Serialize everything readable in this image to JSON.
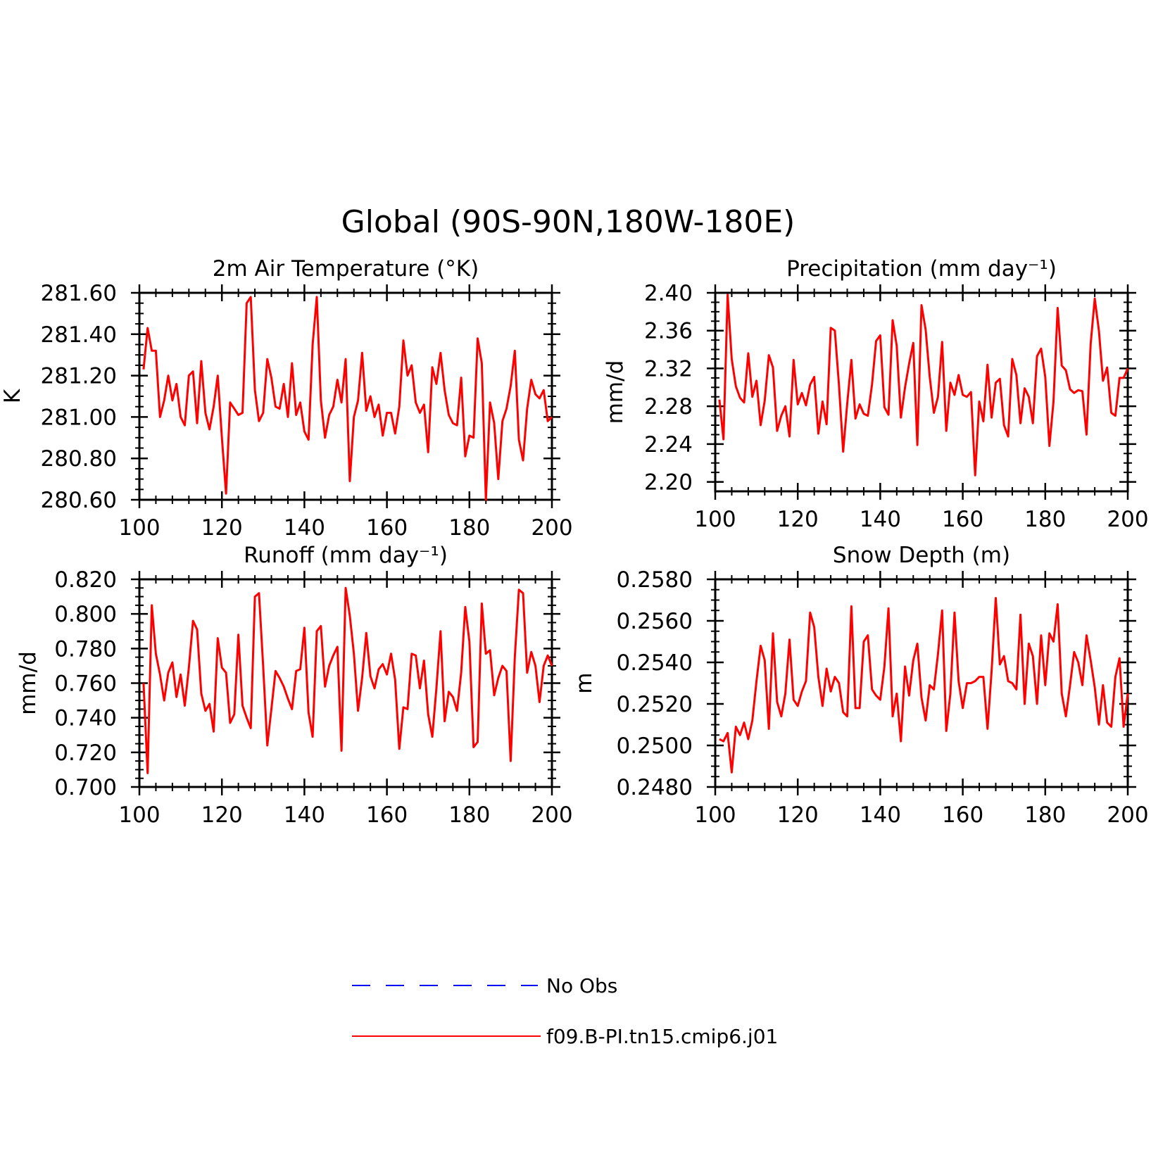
{
  "figure": {
    "title": "Global (90S-90N,180W-180E)"
  },
  "legend": {
    "placement": "bottom-center",
    "entries": [
      {
        "label": "No Obs",
        "color": "#0000ff",
        "style": "dashed"
      },
      {
        "label": "f09.B-PI.tn15.cmip6.j01",
        "color": "#ff0000",
        "style": "solid"
      }
    ]
  },
  "chart_data": [
    {
      "type": "line",
      "title": "2m Air Temperature (°K)",
      "ylabel": "K",
      "xlabel": "",
      "xlim": [
        100,
        200
      ],
      "ylim": [
        280.6,
        281.6
      ],
      "x_ticks": [
        "100",
        "120",
        "140",
        "160",
        "180",
        "200"
      ],
      "y_ticks": [
        "280.60",
        "280.80",
        "281.00",
        "281.20",
        "281.40",
        "281.60"
      ],
      "grid": false,
      "series": [
        {
          "name": "f09.B-PI.tn15.cmip6.j01",
          "color": "#ff0000",
          "x": [
            101,
            102,
            103,
            104,
            105,
            106,
            107,
            108,
            109,
            110,
            111,
            112,
            113,
            114,
            115,
            116,
            117,
            118,
            119,
            120,
            121,
            122,
            123,
            124,
            125,
            126,
            127,
            128,
            129,
            130,
            131,
            132,
            133,
            134,
            135,
            136,
            137,
            138,
            139,
            140,
            141,
            142,
            143,
            144,
            145,
            146,
            147,
            148,
            149,
            150,
            151,
            152,
            153,
            154,
            155,
            156,
            157,
            158,
            159,
            160,
            161,
            162,
            163,
            164,
            165,
            166,
            167,
            168,
            169,
            170,
            171,
            172,
            173,
            174,
            175,
            176,
            177,
            178,
            179,
            180,
            181,
            182,
            183,
            184,
            185,
            186,
            187,
            188,
            189,
            190,
            191,
            192,
            193,
            194,
            195,
            196,
            197,
            198,
            199,
            200
          ],
          "y": [
            281.23,
            281.43,
            281.32,
            281.32,
            281.0,
            281.08,
            281.2,
            281.08,
            281.16,
            281.0,
            280.96,
            281.2,
            281.22,
            280.97,
            281.27,
            281.02,
            280.94,
            281.05,
            281.2,
            280.9,
            280.63,
            281.07,
            281.04,
            281.01,
            281.02,
            281.55,
            281.58,
            281.13,
            280.98,
            281.02,
            281.28,
            281.19,
            281.05,
            281.04,
            281.16,
            281.0,
            281.26,
            281.01,
            281.07,
            280.93,
            280.89,
            281.35,
            281.58,
            281.08,
            280.9,
            281.01,
            281.05,
            281.18,
            281.07,
            281.28,
            280.69,
            281.0,
            281.08,
            281.31,
            281.03,
            281.1,
            281.0,
            281.06,
            280.91,
            281.02,
            281.02,
            280.92,
            281.05,
            281.37,
            281.2,
            281.25,
            281.07,
            281.02,
            281.06,
            280.83,
            281.24,
            281.16,
            281.31,
            281.13,
            281.01,
            280.97,
            280.96,
            281.19,
            280.81,
            280.91,
            280.9,
            281.38,
            281.26,
            280.6,
            281.07,
            280.97,
            280.7,
            280.98,
            281.04,
            281.15,
            281.32,
            280.89,
            280.79,
            281.04,
            281.18,
            281.11,
            281.09,
            281.13,
            280.98,
            281.0
          ]
        }
      ]
    },
    {
      "type": "line",
      "title": "Precipitation (mm day⁻¹)",
      "ylabel": "mm/d",
      "xlabel": "",
      "xlim": [
        100,
        200
      ],
      "ylim": [
        2.19,
        2.4
      ],
      "x_ticks": [
        "100",
        "120",
        "140",
        "160",
        "180",
        "200"
      ],
      "y_ticks": [
        "2.20",
        "2.24",
        "2.28",
        "2.32",
        "2.36",
        "2.40"
      ],
      "grid": false,
      "series": [
        {
          "name": "f09.B-PI.tn15.cmip6.j01",
          "color": "#ff0000",
          "x": [
            101,
            102,
            103,
            104,
            105,
            106,
            107,
            108,
            109,
            110,
            111,
            112,
            113,
            114,
            115,
            116,
            117,
            118,
            119,
            120,
            121,
            122,
            123,
            124,
            125,
            126,
            127,
            128,
            129,
            130,
            131,
            132,
            133,
            134,
            135,
            136,
            137,
            138,
            139,
            140,
            141,
            142,
            143,
            144,
            145,
            146,
            147,
            148,
            149,
            150,
            151,
            152,
            153,
            154,
            155,
            156,
            157,
            158,
            159,
            160,
            161,
            162,
            163,
            164,
            165,
            166,
            167,
            168,
            169,
            170,
            171,
            172,
            173,
            174,
            175,
            176,
            177,
            178,
            179,
            180,
            181,
            182,
            183,
            184,
            185,
            186,
            187,
            188,
            189,
            190,
            191,
            192,
            193,
            194,
            195,
            196,
            197,
            198,
            199,
            200
          ],
          "y": [
            2.287,
            2.245,
            2.398,
            2.33,
            2.301,
            2.289,
            2.284,
            2.336,
            2.29,
            2.307,
            2.26,
            2.286,
            2.334,
            2.321,
            2.254,
            2.27,
            2.28,
            2.248,
            2.329,
            2.282,
            2.294,
            2.281,
            2.303,
            2.311,
            2.251,
            2.285,
            2.261,
            2.363,
            2.36,
            2.302,
            2.232,
            2.283,
            2.329,
            2.267,
            2.282,
            2.272,
            2.27,
            2.303,
            2.349,
            2.355,
            2.279,
            2.271,
            2.371,
            2.344,
            2.268,
            2.3,
            2.325,
            2.347,
            2.239,
            2.387,
            2.361,
            2.311,
            2.273,
            2.29,
            2.348,
            2.254,
            2.305,
            2.292,
            2.313,
            2.292,
            2.29,
            2.295,
            2.207,
            2.285,
            2.264,
            2.324,
            2.268,
            2.305,
            2.309,
            2.26,
            2.248,
            2.33,
            2.313,
            2.262,
            2.299,
            2.29,
            2.262,
            2.333,
            2.341,
            2.311,
            2.238,
            2.285,
            2.384,
            2.323,
            2.318,
            2.298,
            2.294,
            2.297,
            2.296,
            2.25,
            2.346,
            2.394,
            2.36,
            2.307,
            2.321,
            2.273,
            2.27,
            2.31,
            2.31,
            2.32
          ]
        }
      ]
    },
    {
      "type": "line",
      "title": "Runoff (mm day⁻¹)",
      "ylabel": "mm/d",
      "xlabel": "",
      "xlim": [
        100,
        200
      ],
      "ylim": [
        0.7,
        0.82
      ],
      "x_ticks": [
        "100",
        "120",
        "140",
        "160",
        "180",
        "200"
      ],
      "y_ticks": [
        "0.700",
        "0.720",
        "0.740",
        "0.760",
        "0.780",
        "0.800",
        "0.820"
      ],
      "grid": false,
      "series": [
        {
          "name": "f09.B-PI.tn15.cmip6.j01",
          "color": "#ff0000",
          "x": [
            101,
            102,
            103,
            104,
            105,
            106,
            107,
            108,
            109,
            110,
            111,
            112,
            113,
            114,
            115,
            116,
            117,
            118,
            119,
            120,
            121,
            122,
            123,
            124,
            125,
            126,
            127,
            128,
            129,
            130,
            131,
            132,
            133,
            134,
            135,
            136,
            137,
            138,
            139,
            140,
            141,
            142,
            143,
            144,
            145,
            146,
            147,
            148,
            149,
            150,
            151,
            152,
            153,
            154,
            155,
            156,
            157,
            158,
            159,
            160,
            161,
            162,
            163,
            164,
            165,
            166,
            167,
            168,
            169,
            170,
            171,
            172,
            173,
            174,
            175,
            176,
            177,
            178,
            179,
            180,
            181,
            182,
            183,
            184,
            185,
            186,
            187,
            188,
            189,
            190,
            191,
            192,
            193,
            194,
            195,
            196,
            197,
            198,
            199,
            200
          ],
          "y": [
            0.76,
            0.708,
            0.805,
            0.777,
            0.765,
            0.75,
            0.766,
            0.772,
            0.752,
            0.765,
            0.747,
            0.769,
            0.796,
            0.791,
            0.754,
            0.744,
            0.748,
            0.732,
            0.786,
            0.769,
            0.766,
            0.737,
            0.742,
            0.788,
            0.747,
            0.74,
            0.734,
            0.81,
            0.812,
            0.77,
            0.724,
            0.745,
            0.767,
            0.763,
            0.758,
            0.751,
            0.745,
            0.767,
            0.768,
            0.792,
            0.743,
            0.729,
            0.79,
            0.793,
            0.758,
            0.77,
            0.776,
            0.781,
            0.721,
            0.815,
            0.799,
            0.777,
            0.744,
            0.763,
            0.789,
            0.764,
            0.757,
            0.768,
            0.771,
            0.765,
            0.777,
            0.762,
            0.722,
            0.746,
            0.745,
            0.777,
            0.776,
            0.757,
            0.773,
            0.742,
            0.729,
            0.757,
            0.79,
            0.738,
            0.755,
            0.752,
            0.744,
            0.766,
            0.804,
            0.784,
            0.723,
            0.726,
            0.806,
            0.777,
            0.779,
            0.753,
            0.763,
            0.77,
            0.767,
            0.715,
            0.775,
            0.814,
            0.812,
            0.766,
            0.778,
            0.77,
            0.749,
            0.77,
            0.776,
            0.77
          ]
        }
      ]
    },
    {
      "type": "line",
      "title": "Snow Depth (m)",
      "ylabel": "m",
      "xlabel": "",
      "xlim": [
        100,
        200
      ],
      "ylim": [
        0.248,
        0.258
      ],
      "x_ticks": [
        "100",
        "120",
        "140",
        "160",
        "180",
        "200"
      ],
      "y_ticks": [
        "0.2480",
        "0.2500",
        "0.2520",
        "0.2540",
        "0.2560",
        "0.2580"
      ],
      "grid": false,
      "series": [
        {
          "name": "f09.B-PI.tn15.cmip6.j01",
          "color": "#ff0000",
          "x": [
            101,
            102,
            103,
            104,
            105,
            106,
            107,
            108,
            109,
            110,
            111,
            112,
            113,
            114,
            115,
            116,
            117,
            118,
            119,
            120,
            121,
            122,
            123,
            124,
            125,
            126,
            127,
            128,
            129,
            130,
            131,
            132,
            133,
            134,
            135,
            136,
            137,
            138,
            139,
            140,
            141,
            142,
            143,
            144,
            145,
            146,
            147,
            148,
            149,
            150,
            151,
            152,
            153,
            154,
            155,
            156,
            157,
            158,
            159,
            160,
            161,
            162,
            163,
            164,
            165,
            166,
            167,
            168,
            169,
            170,
            171,
            172,
            173,
            174,
            175,
            176,
            177,
            178,
            179,
            180,
            181,
            182,
            183,
            184,
            185,
            186,
            187,
            188,
            189,
            190,
            191,
            192,
            193,
            194,
            195,
            196,
            197,
            198,
            199,
            200
          ],
          "y": [
            0.2503,
            0.2502,
            0.2506,
            0.2487,
            0.2509,
            0.2505,
            0.2511,
            0.2503,
            0.2512,
            0.2531,
            0.2548,
            0.2541,
            0.2508,
            0.2554,
            0.2521,
            0.2514,
            0.2525,
            0.2551,
            0.2522,
            0.2519,
            0.2526,
            0.2531,
            0.2564,
            0.2557,
            0.2533,
            0.2519,
            0.2537,
            0.2526,
            0.2533,
            0.253,
            0.2516,
            0.2514,
            0.2567,
            0.2518,
            0.2518,
            0.255,
            0.2553,
            0.2527,
            0.2524,
            0.2522,
            0.2538,
            0.2566,
            0.2514,
            0.2525,
            0.2502,
            0.2538,
            0.2524,
            0.2541,
            0.2549,
            0.2523,
            0.2512,
            0.2529,
            0.2527,
            0.2544,
            0.2565,
            0.2507,
            0.2525,
            0.2564,
            0.2531,
            0.2518,
            0.253,
            0.253,
            0.2531,
            0.2533,
            0.2533,
            0.2508,
            0.2536,
            0.2571,
            0.2539,
            0.2543,
            0.2531,
            0.253,
            0.2527,
            0.2563,
            0.252,
            0.2549,
            0.2543,
            0.252,
            0.2553,
            0.2529,
            0.2554,
            0.255,
            0.2568,
            0.2525,
            0.2514,
            0.2529,
            0.2545,
            0.254,
            0.2529,
            0.2553,
            0.2541,
            0.2528,
            0.251,
            0.2529,
            0.2511,
            0.2509,
            0.2533,
            0.2542,
            0.2509,
            0.2525
          ]
        }
      ]
    }
  ]
}
